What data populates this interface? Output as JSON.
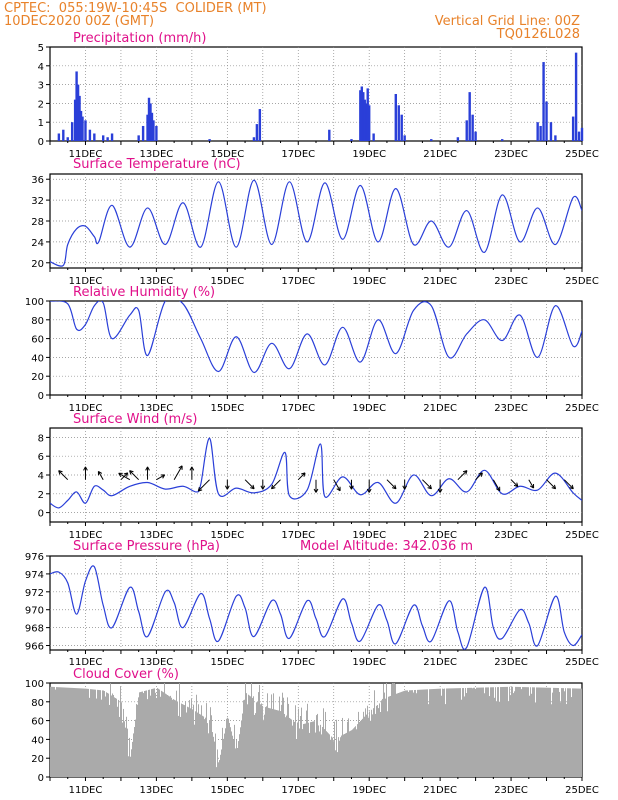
{
  "header": {
    "line1_left": "CPTEC:  055:19W-10:45S  COLIDER (MT)",
    "line2_left": "10DEC2020 00Z (GMT)",
    "line1_right": "Vertical Grid Line: 00Z",
    "line2_right": "TQ0126L028"
  },
  "colors": {
    "header": "#e8822a",
    "title": "#e0108a",
    "line": "#2a3fd8",
    "bar": "#2a3fd8",
    "cloud": "#aaaaaa",
    "grid": "#888888"
  },
  "x_axis": {
    "start": "10DEC2020 00Z",
    "end": "25DEC2020 00Z",
    "labels": [
      "11DEC",
      "13DEC",
      "15DEC",
      "17DEC",
      "19DEC",
      "21DEC",
      "23DEC",
      "25DEC"
    ]
  },
  "chart_data": [
    {
      "id": "precip",
      "type": "bar",
      "title": "Precipitation (mm/h)",
      "ylim": [
        0,
        5
      ],
      "yticks": [
        0,
        1,
        2,
        3,
        4,
        5
      ],
      "grid": true,
      "x": [
        "10DEC 06Z",
        "10DEC 09Z",
        "10DEC 12Z",
        "10DEC 15Z",
        "10DEC 17Z",
        "10DEC 18Z",
        "10DEC 19Z",
        "10DEC 20Z",
        "10DEC 21Z",
        "10DEC 22Z",
        "11DEC 00Z",
        "11DEC 03Z",
        "11DEC 06Z",
        "11DEC 12Z",
        "11DEC 15Z",
        "11DEC 18Z",
        "12DEC 12Z",
        "12DEC 15Z",
        "12DEC 18Z",
        "12DEC 19Z",
        "12DEC 20Z",
        "12DEC 21Z",
        "12DEC 22Z",
        "13DEC 00Z",
        "14DEC 12Z",
        "15DEC 18Z",
        "15DEC 20Z",
        "15DEC 22Z",
        "17DEC 21Z",
        "18DEC 12Z",
        "18DEC 18Z",
        "18DEC 19Z",
        "18DEC 20Z",
        "18DEC 21Z",
        "18DEC 22Z",
        "18DEC 23Z",
        "19DEC 00Z",
        "19DEC 03Z",
        "19DEC 18Z",
        "19DEC 20Z",
        "19DEC 22Z",
        "20DEC 00Z",
        "20DEC 18Z",
        "21DEC 12Z",
        "21DEC 18Z",
        "21DEC 20Z",
        "21DEC 22Z",
        "22DEC 00Z",
        "22DEC 18Z",
        "23DEC 18Z",
        "23DEC 20Z",
        "23DEC 22Z",
        "24DEC 00Z",
        "24DEC 03Z",
        "24DEC 06Z",
        "24DEC 18Z",
        "24DEC 20Z",
        "24DEC 22Z",
        "25DEC 00Z"
      ],
      "values": [
        0.4,
        0.6,
        0.2,
        1.0,
        2.2,
        3.7,
        3.0,
        2.4,
        1.6,
        1.3,
        1.1,
        0.6,
        0.4,
        0.3,
        0.2,
        0.4,
        0.3,
        0.8,
        1.4,
        2.3,
        2.0,
        1.5,
        1.1,
        0.8,
        0.1,
        0.2,
        0.9,
        1.7,
        0.6,
        0.1,
        2.7,
        2.9,
        2.6,
        2.2,
        2.0,
        2.8,
        1.9,
        0.4,
        2.5,
        1.9,
        1.4,
        0.3,
        0.1,
        0.2,
        1.1,
        2.6,
        1.4,
        0.5,
        0.1,
        1.0,
        0.8,
        4.2,
        2.1,
        1.0,
        0.3,
        1.3,
        4.7,
        0.5,
        0.7
      ]
    },
    {
      "id": "temp",
      "type": "line",
      "title": "Surface Temperature (nC)",
      "ylim": [
        19,
        37
      ],
      "yticks": [
        20,
        24,
        28,
        32,
        36
      ],
      "grid": true,
      "x": [
        "10DEC 00Z",
        "10DEC 09Z",
        "10DEC 12Z",
        "10DEC 18Z",
        "11DEC 00Z",
        "11DEC 06Z",
        "11DEC 09Z",
        "11DEC 18Z",
        "12DEC 06Z",
        "12DEC 18Z",
        "13DEC 06Z",
        "13DEC 18Z",
        "14DEC 06Z",
        "14DEC 18Z",
        "15DEC 06Z",
        "15DEC 18Z",
        "16DEC 06Z",
        "16DEC 18Z",
        "17DEC 06Z",
        "17DEC 18Z",
        "18DEC 06Z",
        "18DEC 18Z",
        "19DEC 06Z",
        "19DEC 18Z",
        "20DEC 06Z",
        "20DEC 18Z",
        "21DEC 06Z",
        "21DEC 18Z",
        "22DEC 06Z",
        "22DEC 18Z",
        "23DEC 06Z",
        "23DEC 18Z",
        "24DEC 06Z",
        "24DEC 18Z",
        "25DEC 00Z"
      ],
      "values": [
        20.2,
        19.5,
        23.5,
        26.5,
        27.0,
        25.0,
        24.0,
        31.0,
        23.0,
        30.5,
        23.5,
        31.5,
        23.0,
        35.5,
        23.0,
        35.8,
        23.5,
        35.5,
        24.0,
        35.3,
        24.5,
        34.8,
        24.0,
        34.2,
        23.5,
        28.0,
        23.0,
        30.0,
        22.0,
        33.0,
        24.0,
        30.5,
        23.5,
        32.5,
        30.0
      ]
    },
    {
      "id": "rh",
      "type": "line",
      "title": "Relative Humidity (%)",
      "ylim": [
        0,
        100
      ],
      "yticks": [
        0,
        20,
        40,
        60,
        80,
        100
      ],
      "grid": true,
      "x": [
        "10DEC 00Z",
        "10DEC 12Z",
        "10DEC 18Z",
        "11DEC 00Z",
        "11DEC 06Z",
        "11DEC 12Z",
        "11DEC 18Z",
        "12DEC 06Z",
        "12DEC 12Z",
        "12DEC 18Z",
        "13DEC 06Z",
        "13DEC 18Z",
        "14DEC 06Z",
        "14DEC 18Z",
        "15DEC 06Z",
        "15DEC 18Z",
        "16DEC 06Z",
        "16DEC 18Z",
        "17DEC 06Z",
        "17DEC 18Z",
        "18DEC 06Z",
        "18DEC 18Z",
        "19DEC 06Z",
        "19DEC 18Z",
        "20DEC 06Z",
        "20DEC 18Z",
        "21DEC 06Z",
        "21DEC 18Z",
        "22DEC 06Z",
        "22DEC 18Z",
        "23DEC 06Z",
        "23DEC 18Z",
        "24DEC 06Z",
        "24DEC 18Z",
        "25DEC 00Z"
      ],
      "values": [
        100,
        97,
        70,
        75,
        95,
        98,
        60,
        85,
        90,
        42,
        100,
        97,
        60,
        25,
        62,
        24,
        55,
        28,
        65,
        32,
        72,
        35,
        80,
        44,
        90,
        95,
        40,
        65,
        80,
        58,
        85,
        40,
        95,
        52,
        68
      ]
    },
    {
      "id": "wind",
      "type": "line",
      "title": "Surface Wind (m/s)",
      "ylim": [
        -1,
        9
      ],
      "yticks": [
        0,
        2,
        4,
        6,
        8
      ],
      "grid": true,
      "x": [
        "10DEC 00Z",
        "10DEC 06Z",
        "10DEC 12Z",
        "10DEC 18Z",
        "11DEC 00Z",
        "11DEC 06Z",
        "11DEC 12Z",
        "11DEC 18Z",
        "12DEC 06Z",
        "12DEC 18Z",
        "13DEC 06Z",
        "13DEC 18Z",
        "14DEC 03Z",
        "14DEC 06Z",
        "14DEC 12Z",
        "14DEC 18Z",
        "15DEC 06Z",
        "15DEC 18Z",
        "16DEC 06Z",
        "16DEC 15Z",
        "16DEC 18Z",
        "17DEC 06Z",
        "17DEC 15Z",
        "17DEC 18Z",
        "18DEC 06Z",
        "18DEC 18Z",
        "19DEC 06Z",
        "19DEC 18Z",
        "20DEC 06Z",
        "20DEC 18Z",
        "21DEC 06Z",
        "21DEC 18Z",
        "22DEC 06Z",
        "22DEC 18Z",
        "23DEC 06Z",
        "23DEC 18Z",
        "24DEC 06Z",
        "24DEC 18Z",
        "25DEC 00Z"
      ],
      "values": [
        1.0,
        0.5,
        1.3,
        2.2,
        1.0,
        2.8,
        2.4,
        1.8,
        2.8,
        3.2,
        2.5,
        2.8,
        2.2,
        3.0,
        7.9,
        2.0,
        2.6,
        2.1,
        3.0,
        6.4,
        1.8,
        2.4,
        7.3,
        1.7,
        3.8,
        1.9,
        3.2,
        1.0,
        4.0,
        1.8,
        3.6,
        2.2,
        4.5,
        2.0,
        2.8,
        2.4,
        4.2,
        2.1,
        1.3
      ],
      "vectors": {
        "x": [
          "10DEC 12Z",
          "11DEC 00Z",
          "11DEC 12Z",
          "12DEC 00Z",
          "12DEC 06Z",
          "12DEC 12Z",
          "12DEC 18Z",
          "13DEC 00Z",
          "13DEC 12Z",
          "14DEC 00Z",
          "14DEC 12Z",
          "15DEC 00Z",
          "15DEC 12Z",
          "16DEC 00Z",
          "16DEC 12Z",
          "17DEC 00Z",
          "17DEC 12Z",
          "18DEC 00Z",
          "18DEC 12Z",
          "19DEC 00Z",
          "19DEC 12Z",
          "20DEC 00Z",
          "20DEC 12Z",
          "21DEC 00Z",
          "21DEC 12Z",
          "22DEC 00Z",
          "22DEC 12Z",
          "23DEC 00Z",
          "23DEC 12Z",
          "24DEC 00Z",
          "24DEC 12Z"
        ],
        "dir_deg": [
          135,
          90,
          120,
          45,
          150,
          135,
          90,
          30,
          60,
          90,
          225,
          270,
          315,
          270,
          225,
          45,
          270,
          300,
          270,
          270,
          315,
          270,
          315,
          270,
          45,
          45,
          300,
          315,
          300,
          315,
          315
        ],
        "speed": [
          4,
          4,
          3,
          3,
          4,
          4,
          4,
          3,
          5,
          4,
          5,
          3,
          4,
          3,
          4,
          3,
          4,
          4,
          3,
          4,
          4,
          3,
          4,
          4,
          4,
          3,
          4,
          3,
          3,
          4,
          4
        ]
      }
    },
    {
      "id": "pressure",
      "type": "line",
      "title": "Surface Pressure (hPa)",
      "annotation": "Model Altitude: 342.036 m",
      "ylim": [
        965.5,
        976
      ],
      "yticks": [
        966,
        968,
        970,
        972,
        974,
        976
      ],
      "grid": true,
      "x": [
        "10DEC 00Z",
        "10DEC 06Z",
        "10DEC 12Z",
        "10DEC 18Z",
        "11DEC 00Z",
        "11DEC 06Z",
        "11DEC 12Z",
        "11DEC 18Z",
        "12DEC 06Z",
        "12DEC 12Z",
        "12DEC 18Z",
        "13DEC 06Z",
        "13DEC 12Z",
        "13DEC 18Z",
        "14DEC 06Z",
        "14DEC 12Z",
        "14DEC 18Z",
        "15DEC 06Z",
        "15DEC 12Z",
        "15DEC 18Z",
        "16DEC 06Z",
        "16DEC 12Z",
        "16DEC 18Z",
        "17DEC 06Z",
        "17DEC 12Z",
        "17DEC 18Z",
        "18DEC 06Z",
        "18DEC 12Z",
        "18DEC 18Z",
        "19DEC 06Z",
        "19DEC 12Z",
        "19DEC 18Z",
        "20DEC 06Z",
        "20DEC 12Z",
        "20DEC 18Z",
        "21DEC 06Z",
        "21DEC 12Z",
        "21DEC 18Z",
        "22DEC 06Z",
        "22DEC 12Z",
        "22DEC 18Z",
        "23DEC 06Z",
        "23DEC 12Z",
        "23DEC 18Z",
        "24DEC 06Z",
        "24DEC 12Z",
        "24DEC 18Z",
        "25DEC 00Z"
      ],
      "values": [
        974.0,
        974.2,
        973.0,
        969.5,
        973.2,
        974.8,
        970.5,
        968.0,
        972.5,
        969.8,
        967.0,
        972.0,
        970.8,
        968.0,
        971.8,
        969.0,
        966.5,
        971.5,
        970.2,
        967.0,
        971.0,
        969.5,
        966.8,
        971.0,
        969.0,
        967.0,
        971.2,
        968.5,
        966.5,
        970.5,
        968.8,
        966.2,
        970.5,
        968.2,
        966.5,
        971.0,
        967.5,
        965.8,
        972.5,
        968.0,
        966.8,
        970.0,
        968.5,
        966.0,
        971.5,
        967.5,
        966.0,
        967.2
      ]
    },
    {
      "id": "cloud",
      "type": "area",
      "title": "Cloud Cover (%)",
      "ylim": [
        0,
        100
      ],
      "yticks": [
        0,
        20,
        40,
        60,
        80,
        100
      ],
      "grid": true,
      "x": [
        "10DEC 00Z",
        "10DEC 12Z",
        "11DEC 00Z",
        "11DEC 12Z",
        "12DEC 00Z",
        "12DEC 06Z",
        "12DEC 12Z",
        "13DEC 00Z",
        "13DEC 12Z",
        "14DEC 00Z",
        "14DEC 12Z",
        "14DEC 18Z",
        "15DEC 00Z",
        "15DEC 06Z",
        "15DEC 12Z",
        "16DEC 00Z",
        "16DEC 12Z",
        "17DEC 00Z",
        "17DEC 12Z",
        "18DEC 00Z",
        "18DEC 12Z",
        "19DEC 00Z",
        "19DEC 12Z",
        "20DEC 00Z",
        "21DEC 00Z",
        "22DEC 00Z",
        "23DEC 00Z",
        "24DEC 00Z",
        "25DEC 00Z"
      ],
      "values": [
        96,
        95,
        94,
        92,
        80,
        20,
        90,
        95,
        82,
        72,
        60,
        15,
        65,
        25,
        90,
        75,
        70,
        55,
        60,
        40,
        50,
        70,
        85,
        92,
        94,
        95,
        96,
        95,
        94
      ]
    }
  ]
}
